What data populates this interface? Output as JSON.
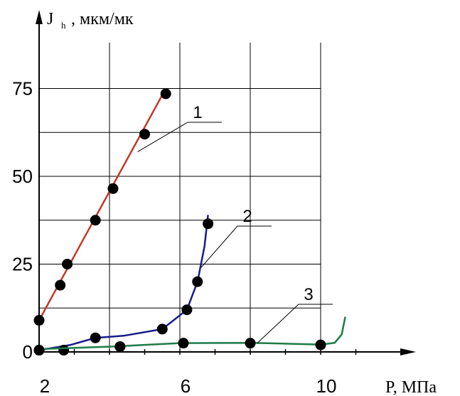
{
  "chart_data": {
    "type": "line",
    "xlabel": "P, МПа",
    "ylabel_main": "J",
    "ylabel_sub": "h",
    "ylabel_unit": ", мкм/мк",
    "xlim": [
      2,
      11.5
    ],
    "ylim": [
      0,
      80
    ],
    "x_ticks": [
      "2",
      "6",
      "10"
    ],
    "y_ticks": [
      "0",
      "25",
      "50",
      "75"
    ],
    "grid": true,
    "series": [
      {
        "name": "1",
        "color": "#c0392b",
        "points": [
          [
            2.0,
            9
          ],
          [
            2.6,
            19
          ],
          [
            2.8,
            25
          ],
          [
            3.6,
            37.5
          ],
          [
            4.1,
            46.5
          ],
          [
            5.0,
            62
          ],
          [
            5.6,
            73.5
          ]
        ],
        "line": [
          [
            2.0,
            9
          ],
          [
            5.6,
            75
          ]
        ]
      },
      {
        "name": "2",
        "color": "#1a1a8c",
        "points": [
          [
            2.0,
            0.5
          ],
          [
            2.7,
            0.5
          ],
          [
            3.6,
            4
          ],
          [
            4.3,
            1.5
          ],
          [
            5.5,
            6.5
          ],
          [
            6.2,
            12
          ],
          [
            6.5,
            20
          ],
          [
            6.8,
            36.5
          ]
        ],
        "line": [
          [
            2.0,
            0.5
          ],
          [
            2.9,
            2
          ],
          [
            3.6,
            4
          ],
          [
            4.4,
            4.6
          ],
          [
            5.5,
            6.5
          ],
          [
            6.2,
            12
          ],
          [
            6.5,
            20
          ],
          [
            6.7,
            30
          ],
          [
            6.8,
            39
          ]
        ]
      },
      {
        "name": "3",
        "color": "#1e7a4a",
        "points": [
          [
            2.0,
            0.5
          ],
          [
            4.3,
            1.5
          ],
          [
            6.1,
            2.5
          ],
          [
            8.0,
            2.5
          ],
          [
            10.0,
            2
          ]
        ],
        "line": [
          [
            2.0,
            0.8
          ],
          [
            4.0,
            1.5
          ],
          [
            6.0,
            2.5
          ],
          [
            8.0,
            2.6
          ],
          [
            10.0,
            2.1
          ],
          [
            10.4,
            2.6
          ],
          [
            10.6,
            5
          ],
          [
            10.7,
            10
          ]
        ]
      }
    ],
    "annotations": [
      {
        "text": "1",
        "target": [
          4.8,
          57
        ]
      },
      {
        "text": "2",
        "target": [
          6.6,
          24
        ]
      },
      {
        "text": "3",
        "target": [
          8.2,
          2.5
        ]
      }
    ]
  }
}
